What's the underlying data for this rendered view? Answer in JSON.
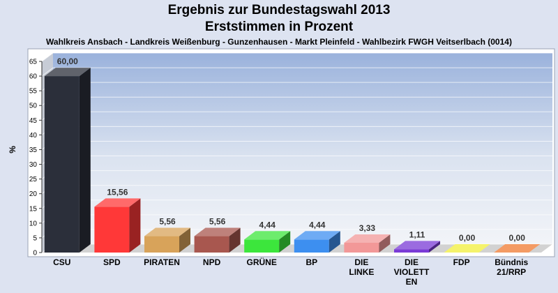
{
  "chart_data": {
    "type": "bar",
    "title": "Ergebnis zur Bundestagswahl 2013",
    "subtitle": "Erststimmen in Prozent",
    "caption": "Wahlkreis Ansbach - Landkreis Weißenburg - Gunzenhausen - Markt Pleinfeld - Wahlbezirk FWGH Veitserlbach (0014)",
    "ylabel": "%",
    "ylim": [
      0,
      65
    ],
    "yticks": [
      0,
      5,
      10,
      15,
      20,
      25,
      30,
      35,
      40,
      45,
      50,
      55,
      60,
      65
    ],
    "grid": true,
    "categories": [
      [
        "CSU"
      ],
      [
        "SPD"
      ],
      [
        "PIRATEN"
      ],
      [
        "NPD"
      ],
      [
        "GRÜNE"
      ],
      [
        "BP"
      ],
      [
        "DIE",
        "LINKE"
      ],
      [
        "DIE",
        "VIOLETT",
        "EN"
      ],
      [
        "FDP"
      ],
      [
        "Bündnis",
        "21/RRP"
      ]
    ],
    "values": [
      60.0,
      15.56,
      5.56,
      5.56,
      4.44,
      4.44,
      3.33,
      1.11,
      0.0,
      0.0
    ],
    "value_labels": [
      "60,00",
      "15,56",
      "5,56",
      "5,56",
      "4,44",
      "4,44",
      "3,33",
      "1,11",
      "0,00",
      "0,00"
    ],
    "colors": [
      "#2b2f3a",
      "#ff3838",
      "#d8a35a",
      "#a8574f",
      "#3ce63c",
      "#3d8ff0",
      "#f29898",
      "#7a3ad6",
      "#f2ef3a",
      "#f07a30"
    ]
  }
}
